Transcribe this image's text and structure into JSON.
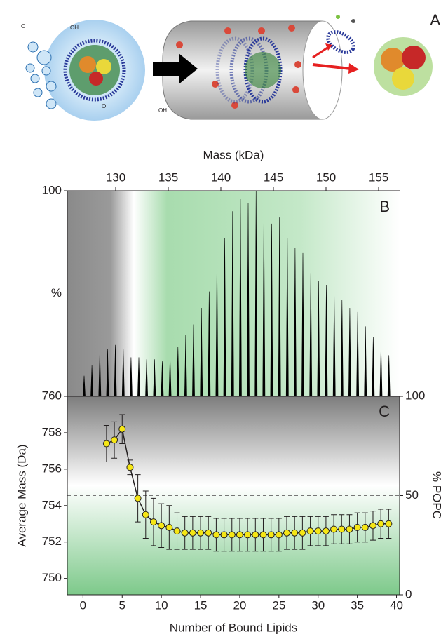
{
  "panel_a": {
    "label": "A",
    "chem_labels": [
      "OH",
      "O",
      "OH",
      "O"
    ]
  },
  "chart_data": [
    {
      "type": "spectrum",
      "panel_label": "B",
      "xlabel": "Mass (kDa)",
      "ylabel": "%",
      "color": "#000000",
      "x": [
        127.0,
        127.74,
        128.49,
        129.23,
        129.97,
        130.72,
        131.46,
        132.2,
        132.94,
        133.69,
        134.43,
        135.17,
        135.92,
        136.66,
        137.4,
        138.15,
        138.89,
        139.63,
        140.37,
        141.12,
        141.86,
        142.6,
        143.35,
        144.09,
        144.83,
        145.58,
        146.32,
        147.06,
        147.8,
        148.55,
        149.29,
        150.03,
        150.78,
        151.52,
        152.26,
        153.01,
        153.75,
        154.49,
        155.23,
        155.98
      ],
      "values": [
        10,
        15,
        21,
        23,
        25,
        23,
        19,
        19,
        18,
        18,
        17,
        19,
        24,
        30,
        35,
        43,
        51,
        66,
        77,
        90,
        96,
        94,
        100,
        87,
        84,
        87,
        77,
        72,
        70,
        60,
        56,
        54,
        49,
        47,
        43,
        41,
        34,
        29,
        24,
        20
      ],
      "xlim": [
        125.4,
        157
      ],
      "xticks": [
        130,
        135,
        140,
        145,
        150,
        155
      ],
      "ylim": [
        0,
        100
      ],
      "yticks": [
        100
      ]
    },
    {
      "type": "scatter",
      "panel_label": "C",
      "xlabel": "Number of Bound Lipids",
      "ylabel": "Average Mass (Da)",
      "y2label": "% POPC",
      "color": "#f5e615",
      "x": [
        3,
        4,
        5,
        6,
        7,
        8,
        9,
        10,
        11,
        12,
        13,
        14,
        15,
        16,
        17,
        18,
        19,
        20,
        21,
        22,
        23,
        24,
        25,
        26,
        27,
        28,
        29,
        30,
        31,
        32,
        33,
        34,
        35,
        36,
        37,
        38,
        39
      ],
      "values": [
        757.4,
        757.6,
        758.2,
        756.1,
        754.4,
        753.5,
        753.1,
        752.9,
        752.8,
        752.6,
        752.5,
        752.5,
        752.5,
        752.5,
        752.4,
        752.4,
        752.4,
        752.4,
        752.4,
        752.4,
        752.4,
        752.4,
        752.4,
        752.5,
        752.5,
        752.5,
        752.6,
        752.6,
        752.6,
        752.7,
        752.7,
        752.7,
        752.8,
        752.8,
        752.9,
        753.0,
        753.0
      ],
      "errors": [
        1.0,
        1.0,
        0.8,
        0.4,
        1.3,
        1.3,
        1.3,
        1.2,
        1.2,
        1.0,
        0.9,
        0.9,
        0.9,
        0.9,
        0.9,
        0.9,
        0.9,
        0.9,
        0.9,
        0.9,
        0.9,
        0.9,
        0.9,
        0.9,
        0.9,
        0.9,
        0.8,
        0.8,
        0.8,
        0.8,
        0.8,
        0.8,
        0.8,
        0.8,
        0.8,
        0.8,
        0.8
      ],
      "xlim": [
        -2,
        40.4
      ],
      "xticks": [
        0,
        5,
        10,
        15,
        20,
        25,
        30,
        35,
        40
      ],
      "ylim": [
        749.1,
        760
      ],
      "yticks": [
        750,
        752,
        754,
        756,
        758,
        760
      ],
      "y2lim": [
        0,
        100
      ],
      "y2ticks": [
        0,
        50,
        100
      ],
      "reference_line": {
        "axis": "y2",
        "value": 50
      }
    }
  ]
}
